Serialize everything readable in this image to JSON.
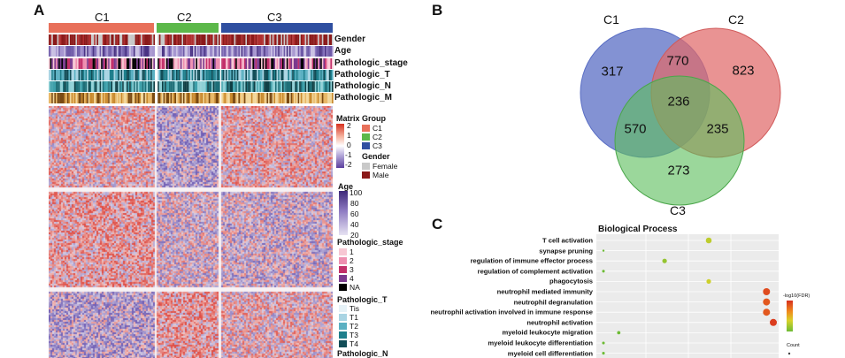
{
  "panels": {
    "a": "A",
    "b": "B",
    "c": "C"
  },
  "heatmap": {
    "clusters": [
      {
        "label": "C1",
        "color": "#e8705a"
      },
      {
        "label": "C2",
        "color": "#5cb84a"
      },
      {
        "label": "C3",
        "color": "#2f4fa0"
      }
    ],
    "tracks": [
      "Gender",
      "Age",
      "Pathologic_stage",
      "Pathologic_T",
      "Pathologic_N",
      "Pathologic_M"
    ]
  },
  "legend": {
    "matrix": {
      "title": "Matrix",
      "ticks": [
        "2",
        "1",
        "0",
        "-1",
        "-2"
      ]
    },
    "group": {
      "title": "Group",
      "items": [
        {
          "label": "C1",
          "color": "#e8705a"
        },
        {
          "label": "C2",
          "color": "#5cb84a"
        },
        {
          "label": "C3",
          "color": "#2f4fa0"
        }
      ]
    },
    "gender": {
      "title": "Gender",
      "items": [
        {
          "label": "Female",
          "color": "#c9c9c9"
        },
        {
          "label": "Male",
          "color": "#8b1a1a"
        }
      ]
    },
    "age": {
      "title": "Age",
      "ticks": [
        "100",
        "80",
        "60",
        "40",
        "20"
      ]
    },
    "stage": {
      "title": "Pathologic_stage",
      "items": [
        {
          "label": "1",
          "color": "#f7c7d3"
        },
        {
          "label": "2",
          "color": "#ee8fb0"
        },
        {
          "label": "3",
          "color": "#c2306a"
        },
        {
          "label": "4",
          "color": "#7b3a8e"
        },
        {
          "label": "NA",
          "color": "#000000"
        }
      ]
    },
    "pt": {
      "title": "Pathologic_T",
      "items": [
        {
          "label": "Tis",
          "color": "#e6f2f7"
        },
        {
          "label": "T1",
          "color": "#a9d4e3"
        },
        {
          "label": "T2",
          "color": "#5bb0c2"
        },
        {
          "label": "T3",
          "color": "#1f7f8c"
        },
        {
          "label": "T4",
          "color": "#124d57"
        }
      ]
    },
    "pn": {
      "title": "Pathologic_N"
    }
  },
  "venn": {
    "sets": [
      {
        "label": "C1",
        "color": "#6b7fc8"
      },
      {
        "label": "C2",
        "color": "#e06a6a"
      },
      {
        "label": "C3",
        "color": "#5dbf5d"
      }
    ],
    "regions": {
      "c1_only": "317",
      "c2_only": "823",
      "c3_only": "273",
      "c1_c2": "770",
      "c1_c3": "570",
      "c2_c3": "235",
      "all": "236"
    }
  },
  "chart_data": {
    "type": "scatter",
    "title": "Biological Process",
    "xlabel": "",
    "ylabel": "",
    "grid": true,
    "legend_titles": [
      "-log10(FDR)",
      "Count"
    ],
    "legend_placement": "right",
    "terms": [
      {
        "term": "T cell activation",
        "x": 0.62,
        "fdr": 6.0,
        "count": 9
      },
      {
        "term": "synapse pruning",
        "x": 0.0,
        "fdr": 5.0,
        "count": 3
      },
      {
        "term": "regulation of immune effector process",
        "x": 0.36,
        "fdr": 5.5,
        "count": 7
      },
      {
        "term": "regulation of complement activation",
        "x": 0.0,
        "fdr": 5.0,
        "count": 4
      },
      {
        "term": "phagocytosis",
        "x": 0.62,
        "fdr": 6.2,
        "count": 7
      },
      {
        "term": "neutrophil mediated immunity",
        "x": 0.96,
        "fdr": 8.6,
        "count": 11
      },
      {
        "term": "neutrophil degranulation",
        "x": 0.96,
        "fdr": 8.4,
        "count": 11
      },
      {
        "term": "neutrophil activation involved in immune response",
        "x": 0.96,
        "fdr": 8.4,
        "count": 11
      },
      {
        "term": "neutrophil activation",
        "x": 1.0,
        "fdr": 8.8,
        "count": 11
      },
      {
        "term": "myeloid leukocyte migration",
        "x": 0.09,
        "fdr": 5.0,
        "count": 5
      },
      {
        "term": "myeloid leukocyte differentiation",
        "x": 0.0,
        "fdr": 5.0,
        "count": 4
      },
      {
        "term": "myeloid cell differentiation",
        "x": 0.0,
        "fdr": 5.0,
        "count": 4
      }
    ]
  }
}
